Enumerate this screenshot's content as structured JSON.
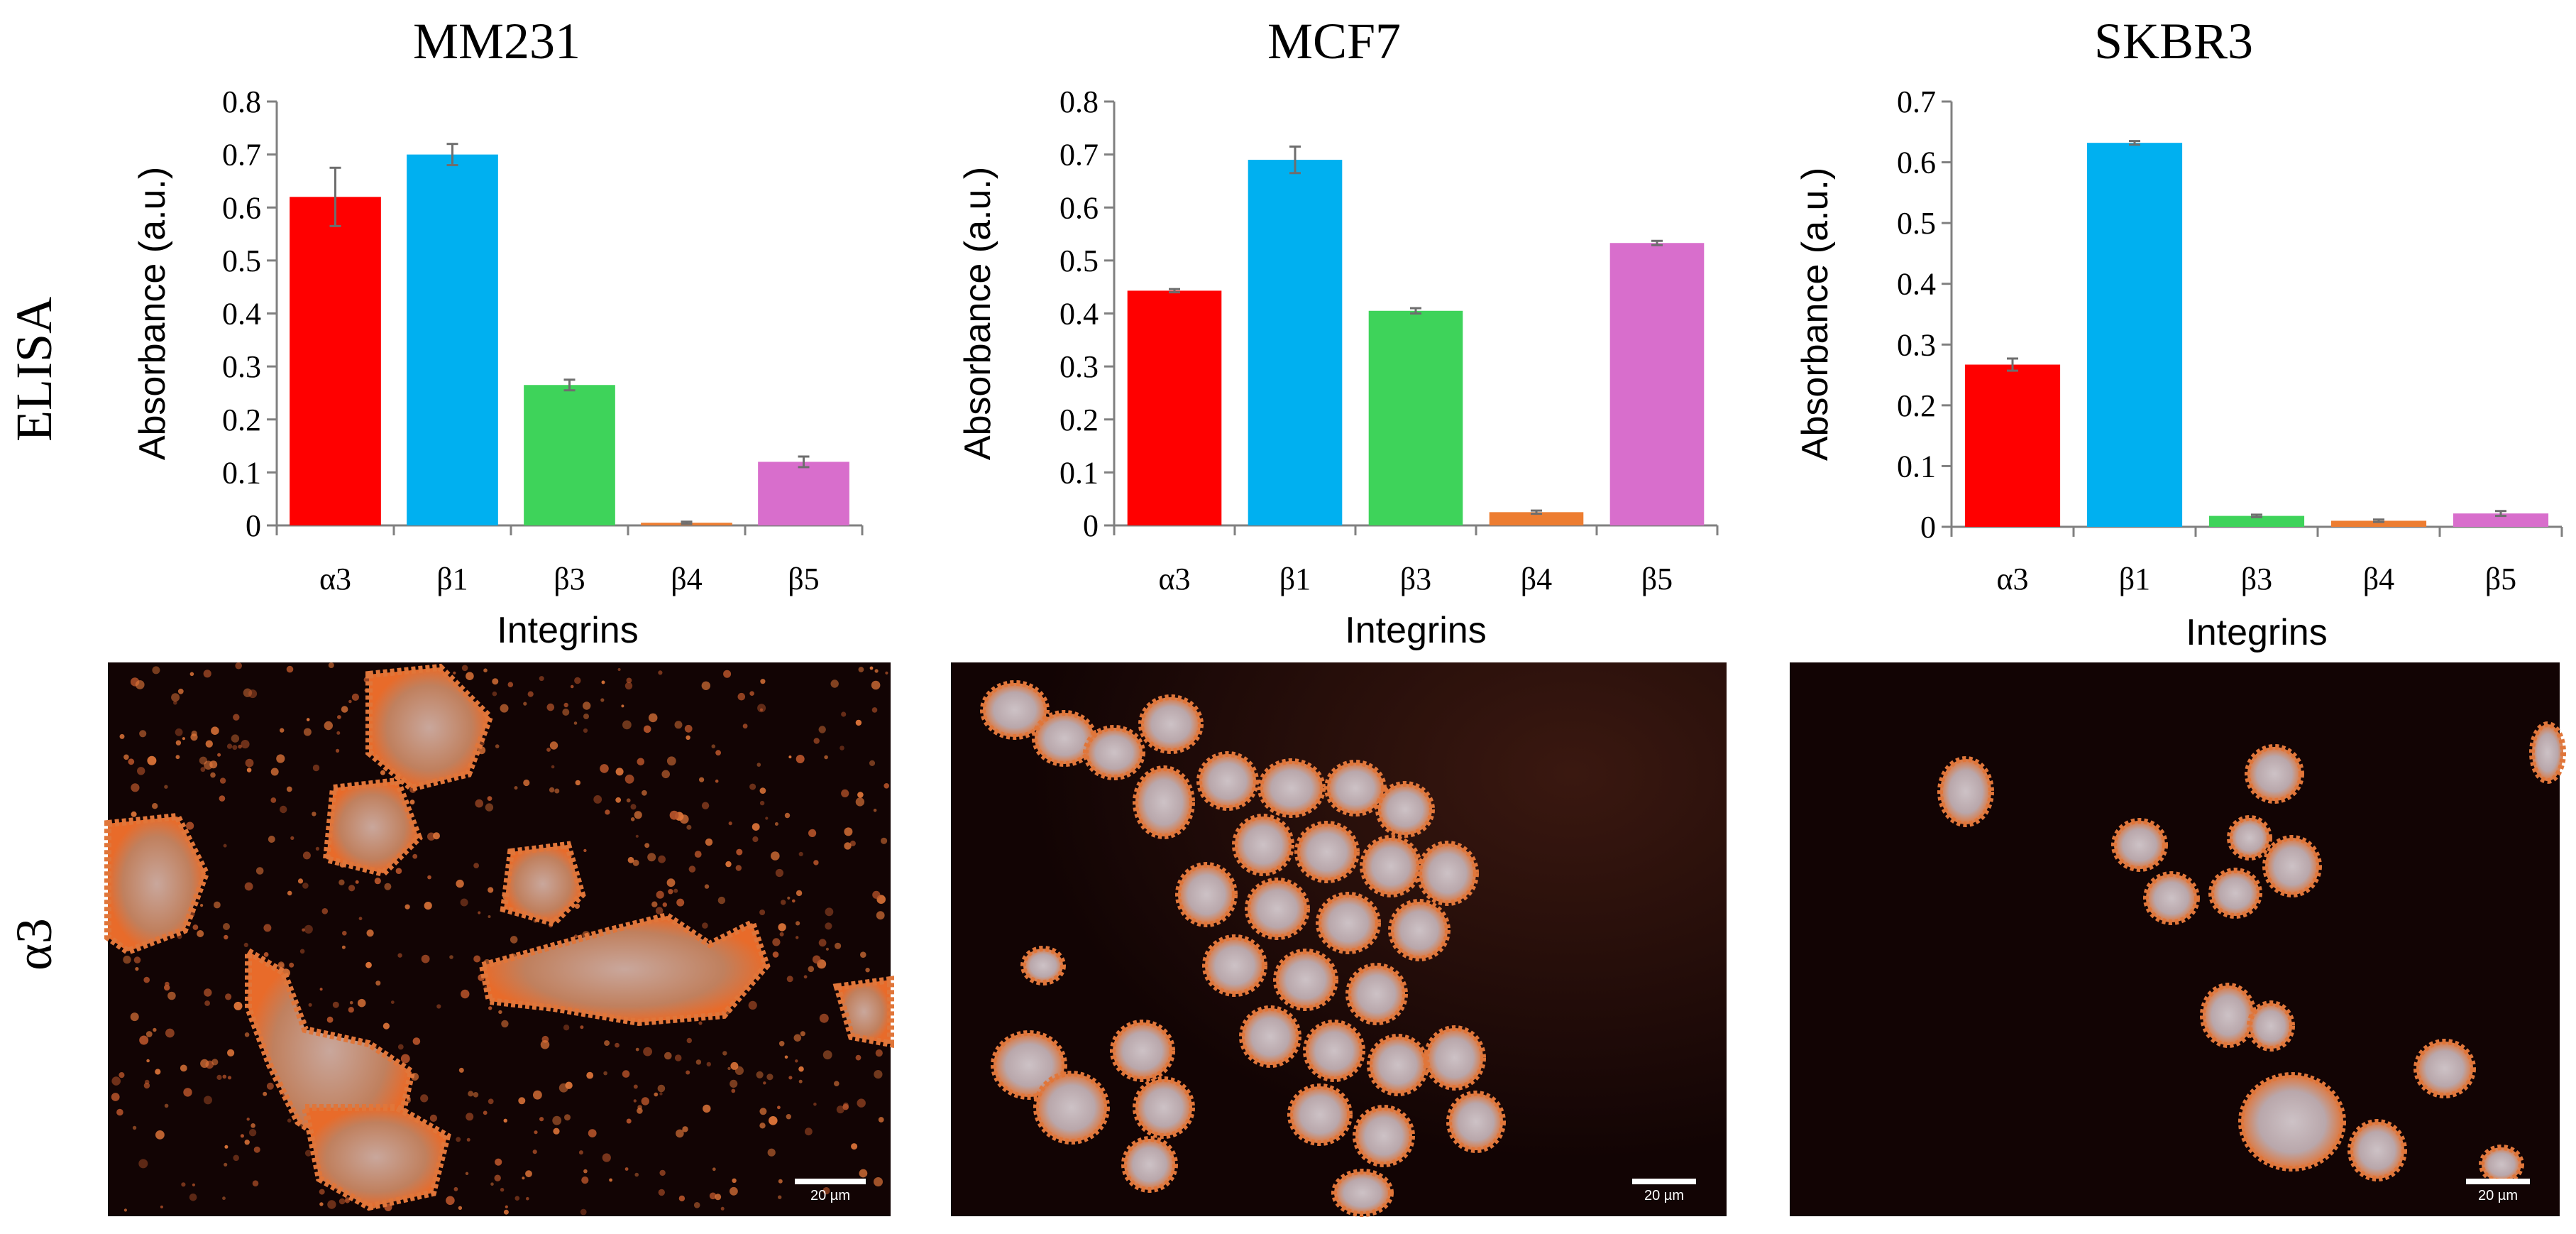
{
  "row_labels": {
    "elisa": "ELISA",
    "alpha3": "α3"
  },
  "colors": {
    "α3": "#ff0000",
    "β1": "#00b0f0",
    "β3": "#3ed35a",
    "β4": "#ed7d31",
    "β5": "#d86ecc",
    "micrograph_background": "#120404",
    "cell_membrane": "#e0763a",
    "cell_body": "#c8bcc0"
  },
  "chart_data": [
    {
      "type": "bar",
      "title": "MM231",
      "categories": [
        "α3",
        "β1",
        "β3",
        "β4",
        "β5"
      ],
      "values": [
        0.62,
        0.7,
        0.265,
        0.005,
        0.12
      ],
      "errors": [
        0.055,
        0.02,
        0.01,
        0.002,
        0.01
      ],
      "xlabel": "Integrins",
      "ylabel": "Absorbance (a.u.)",
      "ylim": [
        0,
        0.8
      ],
      "yticks": [
        0,
        0.1,
        0.2,
        0.3,
        0.4,
        0.5,
        0.6,
        0.7,
        0.8
      ],
      "ytick_labels": [
        "0",
        "0.1",
        "0.2",
        "0.3",
        "0.4",
        "0.5",
        "0.6",
        "0.7",
        "0.8"
      ],
      "grid": false,
      "legend": "none"
    },
    {
      "type": "bar",
      "title": "MCF7",
      "categories": [
        "α3",
        "β1",
        "β3",
        "β4",
        "β5"
      ],
      "values": [
        0.443,
        0.69,
        0.405,
        0.025,
        0.533
      ],
      "errors": [
        0.003,
        0.025,
        0.005,
        0.003,
        0.004
      ],
      "xlabel": "Integrins",
      "ylabel": "Absorbance (a.u.)",
      "ylim": [
        0,
        0.8
      ],
      "yticks": [
        0,
        0.1,
        0.2,
        0.3,
        0.4,
        0.5,
        0.6,
        0.7,
        0.8
      ],
      "ytick_labels": [
        "0",
        "0.1",
        "0.2",
        "0.3",
        "0.4",
        "0.5",
        "0.6",
        "0.7",
        "0.8"
      ],
      "grid": false,
      "legend": "none"
    },
    {
      "type": "bar",
      "title": "SKBR3",
      "categories": [
        "α3",
        "β1",
        "β3",
        "β4",
        "β5"
      ],
      "values": [
        0.267,
        0.632,
        0.018,
        0.01,
        0.022
      ],
      "errors": [
        0.01,
        0.003,
        0.002,
        0.002,
        0.004
      ],
      "xlabel": "Integrins",
      "ylabel": "Absorbance (a.u.)",
      "ylim": [
        0,
        0.7
      ],
      "yticks": [
        0,
        0.1,
        0.2,
        0.3,
        0.4,
        0.5,
        0.6,
        0.7
      ],
      "ytick_labels": [
        "0",
        "0.1",
        "0.2",
        "0.3",
        "0.4",
        "0.5",
        "0.6",
        "0.7"
      ],
      "grid": false,
      "legend": "none"
    }
  ],
  "micrographs": [
    {
      "cell_line": "MM231",
      "stain": "α3",
      "scale_bar": "20 µm"
    },
    {
      "cell_line": "MCF7",
      "stain": "α3",
      "scale_bar": "20 µm"
    },
    {
      "cell_line": "SKBR3",
      "stain": "α3",
      "scale_bar": "20 µm"
    }
  ]
}
